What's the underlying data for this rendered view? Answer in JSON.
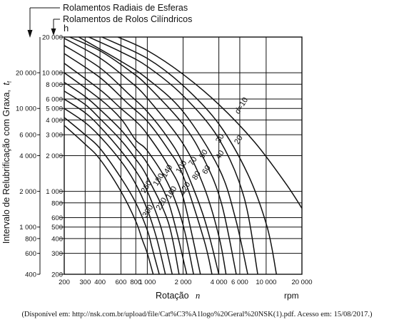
{
  "chart_data": {
    "type": "line",
    "title": "",
    "legend": {
      "radial_ball": "Rolamentos Radiais de Esferas",
      "cylindrical_roller": "Rolamentos de Rolos Cilíndricos"
    },
    "unit_h": "h",
    "ylabel": "Intervalo de Relubrificação com Graxa,",
    "ylabel_symbol": "t",
    "ylabel_sub": "f",
    "xlabel": "Rotação",
    "xlabel_symbol": "n",
    "xunit": "rpm",
    "x_scale": "log",
    "y_scale": "log",
    "xlim": [
      200,
      20000
    ],
    "ylim": [
      200,
      20000
    ],
    "grid": true,
    "x_ticks": [
      "200",
      "300",
      "400",
      "600",
      "800",
      "1 000",
      "2 000",
      "4 000",
      "6 000",
      "10 000",
      "20 000"
    ],
    "y_ticks_outer": [
      "400",
      "600",
      "800",
      "1 000",
      "2 000",
      "4 000",
      "6 000",
      "10 000",
      "20 000"
    ],
    "y_ticks_inner": [
      "200",
      "300",
      "400",
      "500",
      "600",
      "800",
      "1 000",
      "2 000",
      "3 000",
      "4 000",
      "5 000",
      "6 000",
      "8 000",
      "10 000",
      "20 000"
    ],
    "series": [
      {
        "name": "d=10",
        "x": [
          565,
          1000,
          2000,
          4000,
          8000,
          14500,
          20000
        ],
        "y": [
          20000,
          15400,
          9700,
          5400,
          2600,
          1180,
          720
        ]
      },
      {
        "name": "20",
        "x": [
          415,
          1000,
          2000,
          4000,
          7000,
          10200,
          12200
        ],
        "y": [
          20000,
          13200,
          7800,
          3700,
          1400,
          500,
          200
        ]
      },
      {
        "name": "30",
        "x": [
          322,
          600,
          1000,
          2000,
          4000,
          6500,
          8500
        ],
        "y": [
          20000,
          15000,
          11300,
          6400,
          2780,
          900,
          200
        ]
      },
      {
        "name": "40",
        "x": [
          265,
          600,
          1000,
          2000,
          4000,
          5500,
          7000
        ],
        "y": [
          20000,
          12500,
          8900,
          4700,
          1570,
          600,
          200
        ]
      },
      {
        "name": "50",
        "x": [
          222,
          400,
          700,
          1000,
          2000,
          3000,
          4200,
          5600
        ],
        "y": [
          20000,
          15300,
          10500,
          7800,
          3670,
          1870,
          800,
          200
        ]
      },
      {
        "name": "60",
        "x": [
          200,
          400,
          700,
          1000,
          2000,
          3000,
          4000,
          4600
        ],
        "y": [
          19500,
          13300,
          8600,
          6100,
          2520,
          1090,
          420,
          200
        ]
      },
      {
        "name": "70",
        "x": [
          200,
          400,
          700,
          1000,
          1500,
          2000,
          3000,
          4000
        ],
        "y": [
          17000,
          11000,
          6600,
          4700,
          2800,
          1700,
          600,
          200
        ]
      },
      {
        "name": "80",
        "x": [
          200,
          400,
          700,
          1000,
          1500,
          2000,
          3000,
          3500
        ],
        "y": [
          14500,
          9100,
          5400,
          3900,
          2250,
          1350,
          390,
          200
        ]
      },
      {
        "name": "100",
        "x": [
          200,
          400,
          600,
          800,
          1000,
          1500,
          2000,
          2800
        ],
        "y": [
          12000,
          7200,
          5000,
          3900,
          3030,
          1650,
          890,
          200
        ]
      },
      {
        "name": "120",
        "x": [
          200,
          400,
          600,
          800,
          1000,
          1500,
          2000,
          2450
        ],
        "y": [
          10000,
          6000,
          4100,
          2700,
          2200,
          1150,
          520,
          200
        ]
      },
      {
        "name": "140",
        "x": [
          200,
          300,
          400,
          600,
          800,
          1000,
          1500,
          2150
        ],
        "y": [
          8300,
          6300,
          4900,
          3300,
          2300,
          1720,
          820,
          200
        ]
      },
      {
        "name": "160",
        "x": [
          200,
          300,
          400,
          600,
          800,
          1000,
          1500,
          1850
        ],
        "y": [
          7000,
          5400,
          4100,
          2700,
          1870,
          1320,
          550,
          200
        ]
      },
      {
        "name": "180",
        "x": [
          200,
          300,
          400,
          600,
          800,
          1000,
          1300,
          1620
        ],
        "y": [
          6000,
          4600,
          3500,
          2200,
          1490,
          1000,
          500,
          200
        ]
      },
      {
        "name": "220",
        "x": [
          200,
          300,
          400,
          600,
          800,
          1000,
          1200,
          1420
        ],
        "y": [
          5000,
          3800,
          2900,
          1800,
          1150,
          700,
          400,
          200
        ]
      },
      {
        "name": "260",
        "x": [
          200,
          300,
          400,
          600,
          800,
          1000,
          1100,
          1260
        ],
        "y": [
          4200,
          3000,
          2300,
          1300,
          800,
          470,
          330,
          200
        ]
      },
      {
        "name": "300",
        "x": [
          200,
          300,
          400,
          600,
          800,
          900,
          1000,
          1120
        ],
        "y": [
          3600,
          2500,
          1860,
          1000,
          560,
          400,
          300,
          200
        ]
      }
    ]
  },
  "caption": "(Disponível em: http://nsk.com.br/upload/file/Cat%C3%A1logo%20Geral%20NSK(1).pdf. Acesso em: 15/08/2017.)"
}
